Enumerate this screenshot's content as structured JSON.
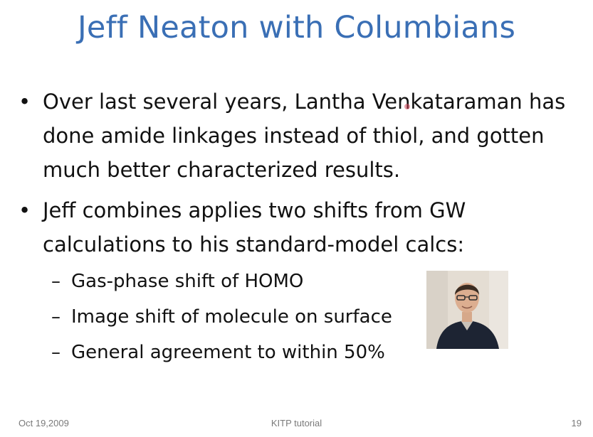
{
  "slide": {
    "title": "Jeff Neaton with Columbians",
    "bullets": [
      {
        "marker": "•",
        "text": "Over last several years, Lantha  Venkataraman has done amide linkages instead of thiol, and gotten much better characterized results."
      },
      {
        "marker": "•",
        "text": "Jeff combines applies two shifts from GW calculations to his standard-model calcs:"
      }
    ],
    "sub_bullets": [
      {
        "marker": "–",
        "text": "Gas-phase shift of HOMO"
      },
      {
        "marker": "–",
        "text": "Image shift of molecule on surface"
      },
      {
        "marker": "–",
        "text": "General agreement to within 50%"
      }
    ],
    "footer": {
      "date": "Oct 19,2009",
      "center": "KITP tutorial",
      "page_number": "19"
    }
  },
  "colors": {
    "title": "#3a6fb5",
    "body_text": "#111111",
    "footer_text": "#7a7a7a"
  }
}
